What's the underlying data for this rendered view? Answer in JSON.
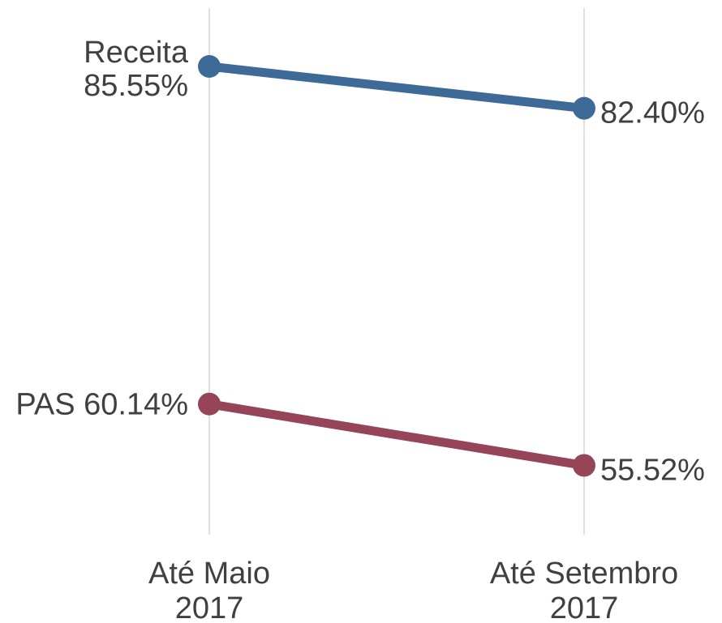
{
  "chart_data": {
    "type": "line",
    "categories": [
      [
        "Até Maio",
        "2017"
      ],
      [
        "Até Setembro",
        "2017"
      ]
    ],
    "series": [
      {
        "name": "Receita",
        "values": [
          85.55,
          82.4
        ],
        "labels": [
          "85.55%",
          "82.40%"
        ],
        "color": "#3E6A98"
      },
      {
        "name": "PAS",
        "values": [
          60.14,
          55.52
        ],
        "labels": [
          "60.14%",
          "55.52%"
        ],
        "color": "#964458"
      }
    ],
    "gridlines": "vertical",
    "gridline_color": "#D0D0D0",
    "label_color": "#404040"
  }
}
